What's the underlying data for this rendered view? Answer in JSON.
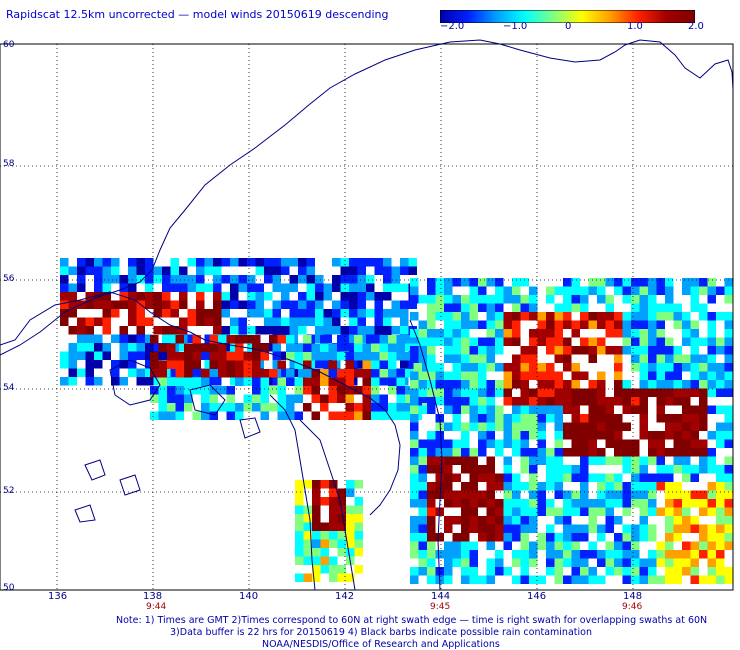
{
  "title": "Rapidscat 12.5km uncorrected — model winds 20150619 descending",
  "colorbar": {
    "ticks": [
      "−2.0",
      "−1.0",
      "0",
      "1.0",
      "2.0"
    ],
    "min": -2.0,
    "max": 2.0,
    "colors": [
      "#0000aa",
      "#0020ff",
      "#00a0ff",
      "#00ffff",
      "#80ff80",
      "#ffff00",
      "#ffa000",
      "#ff2000",
      "#a00000",
      "#800000"
    ]
  },
  "lat_labels": [
    "60",
    "58",
    "56",
    "54",
    "52",
    "50"
  ],
  "lon_labels": [
    "136",
    "138",
    "140",
    "142",
    "144",
    "146",
    "148"
  ],
  "time_labels": [
    {
      "text": "9:44",
      "lon": 138
    },
    {
      "text": "9:45",
      "lon": 144
    },
    {
      "text": "9:46",
      "lon": 148
    }
  ],
  "notes": {
    "line1": "Note: 1) Times are GMT 2)Times correspond to 60N at right swath edge — time is right swath for overlapping swaths at 60N",
    "line2": "3)Data buffer is 22 hrs for 20150619 4) Black barbs indicate possible rain contamination",
    "line3": "NOAA/NESDIS/Office of Research and Applications"
  },
  "map": {
    "lon_range": [
      135,
      149.5
    ],
    "lat_range": [
      50,
      60
    ],
    "grid": true,
    "coastline_color": "#000080"
  }
}
